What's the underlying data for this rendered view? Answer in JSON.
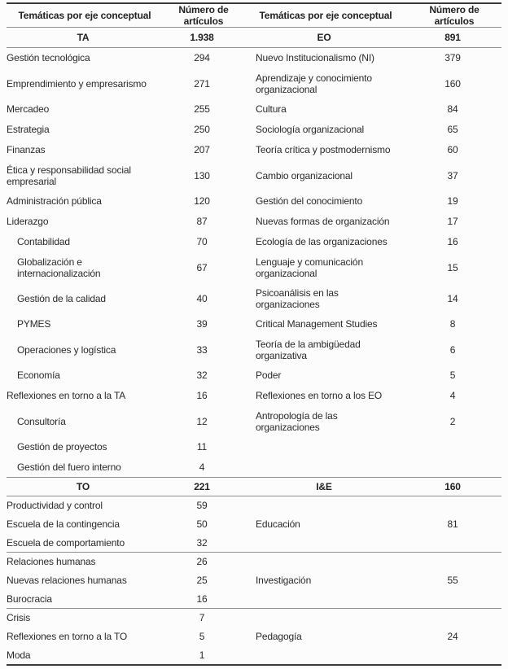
{
  "table": {
    "header": [
      "Temáticas por eje conceptual",
      "Número de artículos",
      "Temáticas por eje conceptual",
      "Número de artículos"
    ],
    "ta": {
      "left_title": "TA",
      "left_total": "1.938",
      "right_title": "EO",
      "right_total": "891",
      "rows": [
        [
          "Gestión tecnológica",
          "294",
          "Nuevo Institucionalismo (NI)",
          "379"
        ],
        [
          "Emprendimiento y empresarismo",
          "271",
          "Aprendizaje y conocimiento organizacional",
          "160"
        ],
        [
          "Mercadeo",
          "255",
          "Cultura",
          "84"
        ],
        [
          "Estrategia",
          "250",
          "Sociología organizacional",
          "65"
        ],
        [
          "Finanzas",
          "207",
          "Teoría crítica y postmodernismo",
          "60"
        ],
        [
          "Ética y responsabilidad social empresarial",
          "130",
          "Cambio organizacional",
          "37"
        ],
        [
          "Administración pública",
          "120",
          "Gestión del conocimiento",
          "19"
        ],
        [
          "Liderazgo",
          "87",
          "Nuevas formas de organización",
          "17"
        ],
        [
          "Contabilidad",
          "70",
          "Ecología de las organizaciones",
          "16"
        ],
        [
          "Globalización e internacionalización",
          "67",
          "Lenguaje y comunicación organizacional",
          "15"
        ],
        [
          "Gestión de la calidad",
          "40",
          "Psicoanálisis en las organizaciones",
          "14"
        ],
        [
          "PYMES",
          "39",
          "Critical Management Studies",
          "8"
        ],
        [
          "Operaciones y logística",
          "33",
          "Teoría de la ambigüedad organizativa",
          "6"
        ],
        [
          "Economía",
          "32",
          "Poder",
          "5"
        ],
        [
          "Reflexiones en torno a la TA",
          "16",
          "Reflexiones en torno a los EO",
          "4"
        ],
        [
          "Consultoría",
          "12",
          "Antropología de las organizaciones",
          "2"
        ],
        [
          "Gestión de proyectos",
          "11",
          "",
          ""
        ],
        [
          "Gestión del fuero interno",
          "4",
          "",
          ""
        ]
      ]
    },
    "to": {
      "left_title": "TO",
      "left_total": "221",
      "right_title": "I&E",
      "right_total": "160",
      "groups": [
        {
          "rows": [
            [
              "Productividad y control",
              "59"
            ],
            [
              "Escuela de la contingencia",
              "50"
            ],
            [
              "Escuela de comportamiento",
              "32"
            ]
          ],
          "right": [
            "Educación",
            "81"
          ]
        },
        {
          "rows": [
            [
              "Relaciones humanas",
              "26"
            ],
            [
              "Nuevas relaciones humanas",
              "25"
            ],
            [
              "Burocracia",
              "16"
            ]
          ],
          "right": [
            "Investigación",
            "55"
          ]
        },
        {
          "rows": [
            [
              "Crisis",
              "7"
            ],
            [
              "Reflexiones en torno a la TO",
              "5"
            ],
            [
              "Moda",
              "1"
            ]
          ],
          "right": [
            "Pedagogía",
            "24"
          ]
        }
      ]
    }
  }
}
